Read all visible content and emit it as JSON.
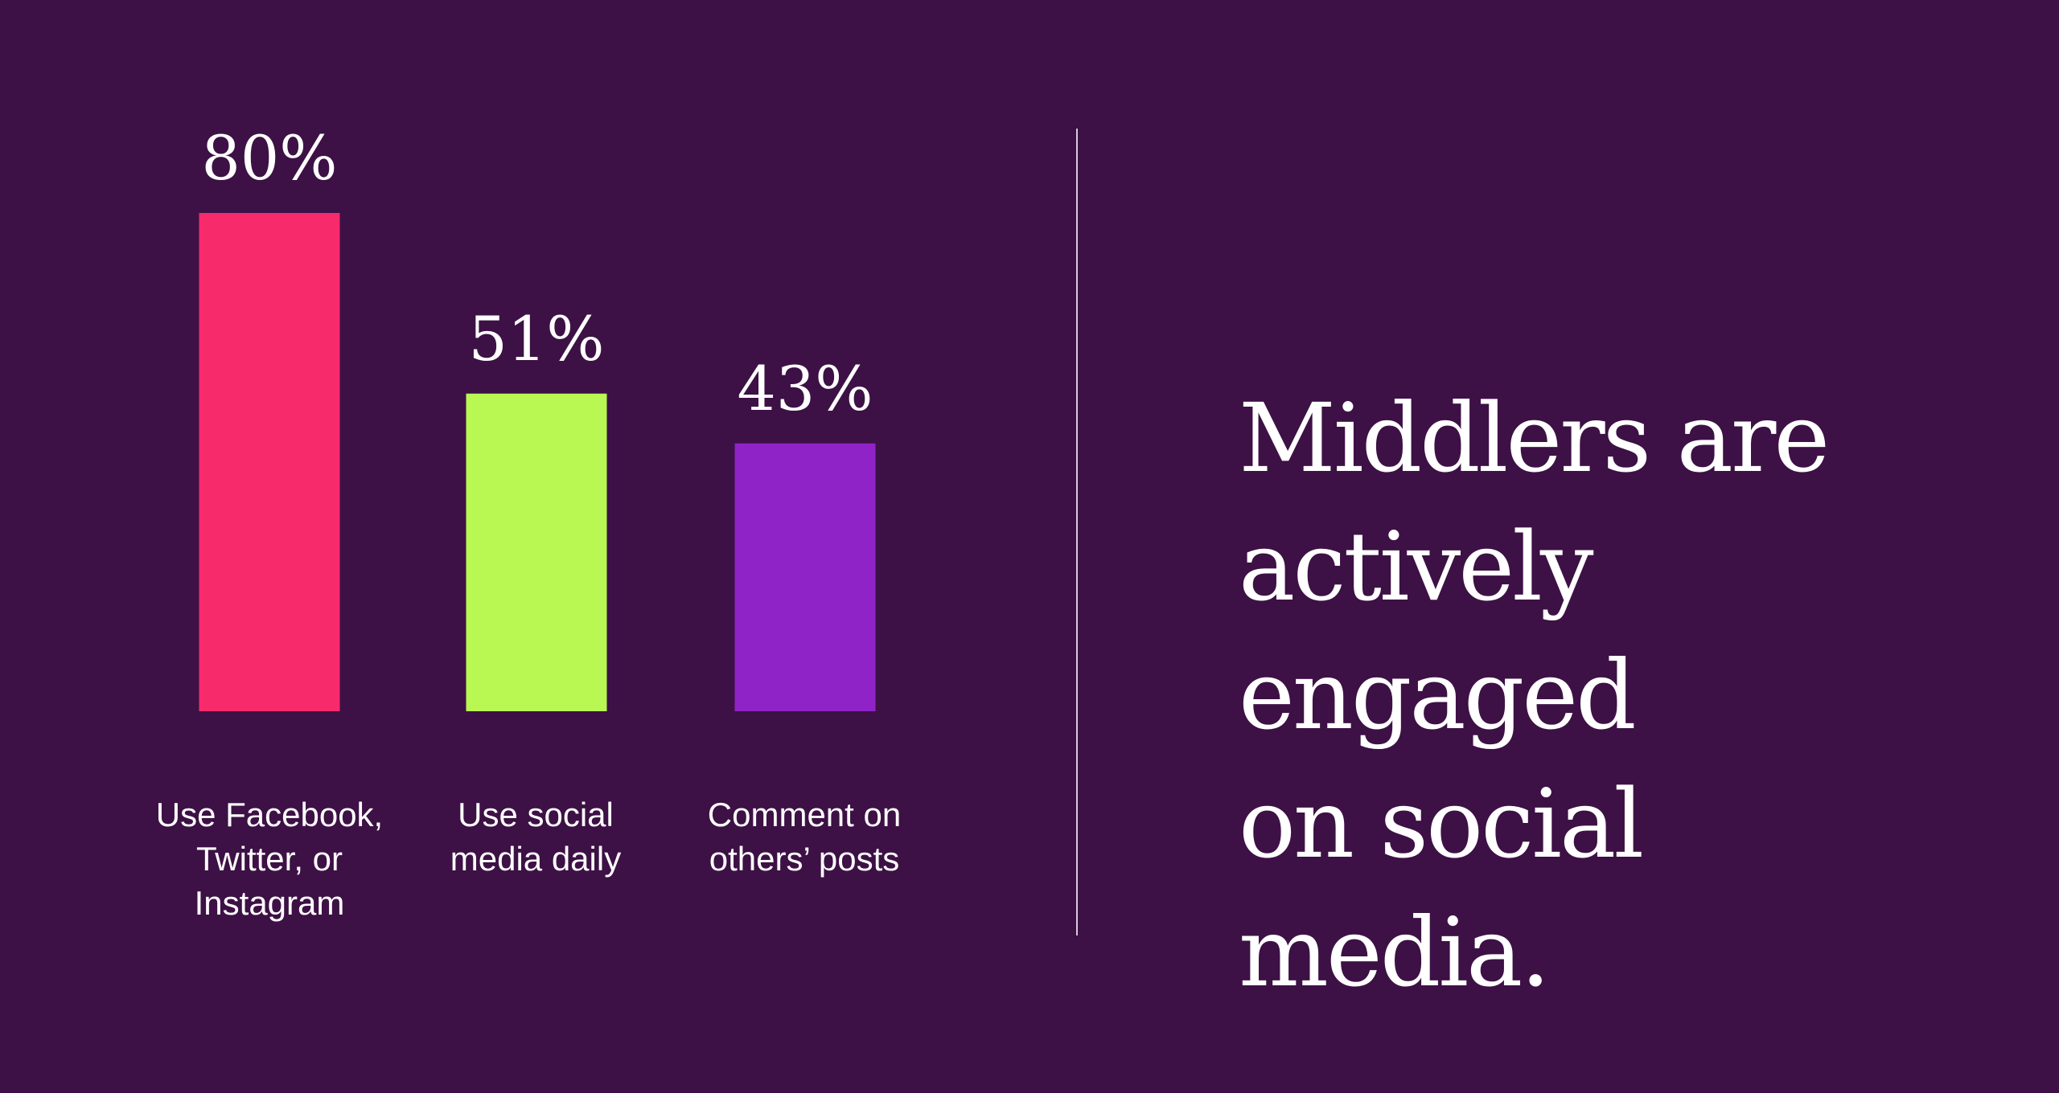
{
  "chart_data": {
    "type": "bar",
    "categories": [
      "Use Facebook,\nTwitter, or\nInstagram",
      "Use social\nmedia daily",
      "Comment on\nothers’ posts"
    ],
    "values": [
      80,
      51,
      43
    ],
    "value_labels": [
      "80%",
      "51%",
      "43%"
    ],
    "unit": "%",
    "ylim": [
      0,
      100
    ],
    "grid": false,
    "legend": "none"
  },
  "colors": {
    "background": "#3d1145",
    "bars": [
      "#f72a6c",
      "#b9f752",
      "#9023c8"
    ],
    "text": "#ffffff",
    "divider": "#d9c8dc"
  },
  "headline": "Middlers are\nactively engaged\non social media."
}
